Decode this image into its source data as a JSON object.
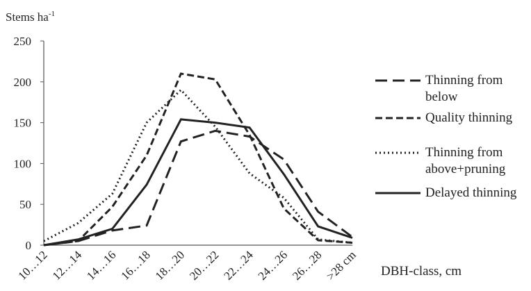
{
  "chart_data": {
    "type": "line",
    "y_label": {
      "text": "Stems ha",
      "superscript": "-1"
    },
    "x_label": "DBH-class, cm",
    "categories": [
      "10…12",
      "12…14",
      "14…16",
      "16…18",
      "18…20",
      "20…22",
      "22…24",
      "24…26",
      "26…28",
      ">28 cm"
    ],
    "series": [
      {
        "name": "Thinning from below",
        "color": "#222222",
        "line_style": "long-dash",
        "values": [
          0,
          5,
          18,
          24,
          127,
          140,
          133,
          105,
          41,
          10
        ]
      },
      {
        "name": "Quality thinning",
        "color": "#222222",
        "line_style": "dash",
        "values": [
          0,
          5,
          47,
          110,
          210,
          203,
          135,
          45,
          6,
          3
        ]
      },
      {
        "name": "Thinning from above+pruning",
        "color": "#222222",
        "line_style": "dot",
        "values": [
          5,
          27,
          63,
          150,
          190,
          145,
          88,
          58,
          7,
          3
        ]
      },
      {
        "name": "Delayed thinning",
        "color": "#222222",
        "line_style": "solid",
        "values": [
          0,
          7,
          20,
          74,
          154,
          150,
          144,
          87,
          23,
          9
        ]
      }
    ],
    "ylim": [
      0,
      250
    ],
    "yticks": [
      0,
      50,
      100,
      150,
      200,
      250
    ],
    "grid": false,
    "legend": "right"
  }
}
